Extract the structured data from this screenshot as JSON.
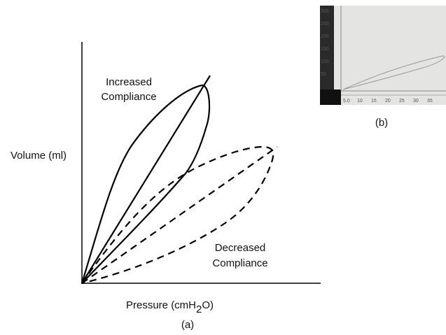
{
  "panel_a": {
    "increased_label": [
      "Increased",
      "Compliance"
    ],
    "decreased_label": [
      "Decreased",
      "Compliance"
    ],
    "y_axis_label": "Volume (ml)",
    "x_axis_label": [
      "Pressure (cmH",
      "2",
      "O)"
    ],
    "caption": "(a)"
  },
  "panel_b": {
    "y_ticks": [
      "300",
      "250",
      "200",
      "150",
      "100",
      "50"
    ],
    "x_ticks": [
      "5.0",
      "10",
      "15",
      "20",
      "25",
      "30",
      "35"
    ],
    "caption": "(b)"
  }
}
